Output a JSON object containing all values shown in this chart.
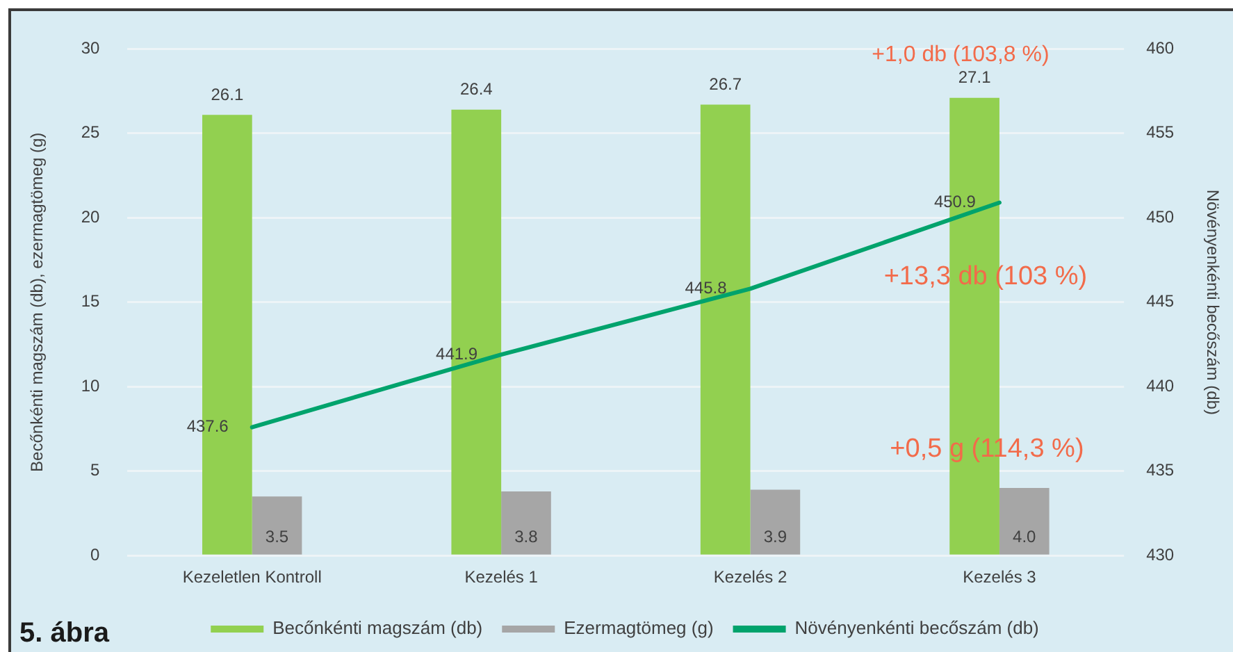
{
  "chart_data": {
    "type": "bar",
    "categories": [
      "Kezeletlen Kontroll",
      "Kezelés 1",
      "Kezelés 2",
      "Kezelés 3"
    ],
    "series": [
      {
        "name": "Becőnkénti magszám (db)",
        "color": "#92d050",
        "values": [
          26.1,
          26.4,
          26.7,
          27.1
        ],
        "value_labels": [
          "26.1",
          "26.4",
          "26.7",
          "27.1"
        ]
      },
      {
        "name": "Ezermagtömeg (g)",
        "color": "#a6a6a6",
        "values": [
          3.5,
          3.8,
          3.9,
          4.0
        ],
        "value_labels": [
          "3.5",
          "3.8",
          "3.9",
          "4.0"
        ]
      },
      {
        "name": "Növényenkénti becőszám (db)",
        "type": "line",
        "axis": "y2",
        "color": "#00a36c",
        "values": [
          437.6,
          441.9,
          445.8,
          450.9
        ],
        "value_labels": [
          "437.6",
          "441.9",
          "445.8",
          "450.9"
        ]
      }
    ],
    "ylabel": "Becőnkénti magszám (db), ezermagtömeg (g)",
    "y2label": "Növényenkénti becőszám (db)",
    "ylim": [
      0,
      30
    ],
    "yticks": [
      0,
      5,
      10,
      15,
      20,
      25,
      30
    ],
    "y2lim": [
      430,
      460
    ],
    "y2ticks": [
      430,
      435,
      440,
      445,
      450,
      455,
      460
    ],
    "legend": "bottom",
    "grid": "y",
    "marker": "none",
    "annotations": [
      "+1,0 db (103,8 %)",
      "+13,3 db (103 %)",
      "+0,5 g (114,3 %)",
      "5. ábra"
    ]
  }
}
